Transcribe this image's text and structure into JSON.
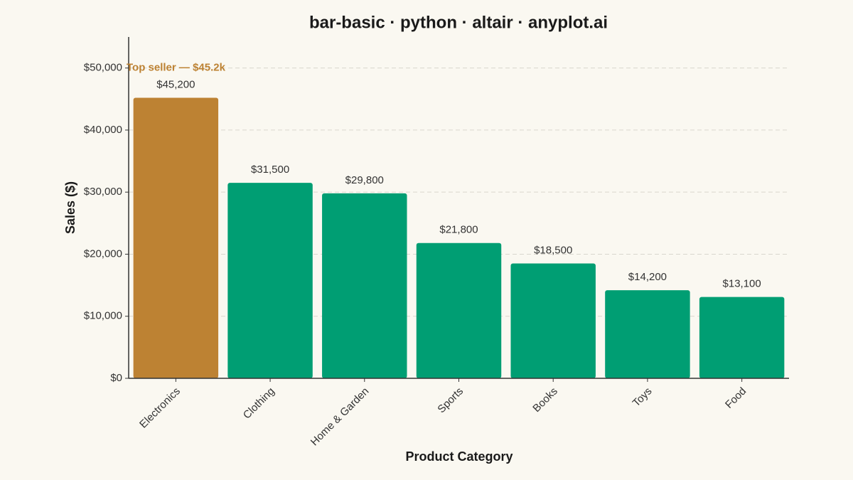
{
  "chart_data": {
    "type": "bar",
    "title": "bar-basic · python · altair · anyplot.ai",
    "x_label": "Product Category",
    "y_label": "Sales ($)",
    "categories": [
      "Electronics",
      "Clothing",
      "Home & Garden",
      "Sports",
      "Books",
      "Toys",
      "Food"
    ],
    "values": [
      45200,
      31500,
      29800,
      21800,
      18500,
      14200,
      13100
    ],
    "value_labels": [
      "$45,200",
      "$31,500",
      "$29,800",
      "$21,800",
      "$18,500",
      "$14,200",
      "$13,100"
    ],
    "colors": [
      "#BD8233",
      "#009E73",
      "#009E73",
      "#009E73",
      "#009E73",
      "#009E73",
      "#009E73"
    ],
    "annotation": {
      "text": "Top seller — $45.2k",
      "color": "#BD8233"
    },
    "ylim": [
      0,
      55000
    ],
    "yticks": [
      {
        "value": 0,
        "label": "$0"
      },
      {
        "value": 10000,
        "label": "$10,000"
      },
      {
        "value": 20000,
        "label": "$20,000"
      },
      {
        "value": 30000,
        "label": "$30,000"
      },
      {
        "value": 40000,
        "label": "$40,000"
      },
      {
        "value": 50000,
        "label": "$50,000"
      }
    ],
    "grid": true
  }
}
